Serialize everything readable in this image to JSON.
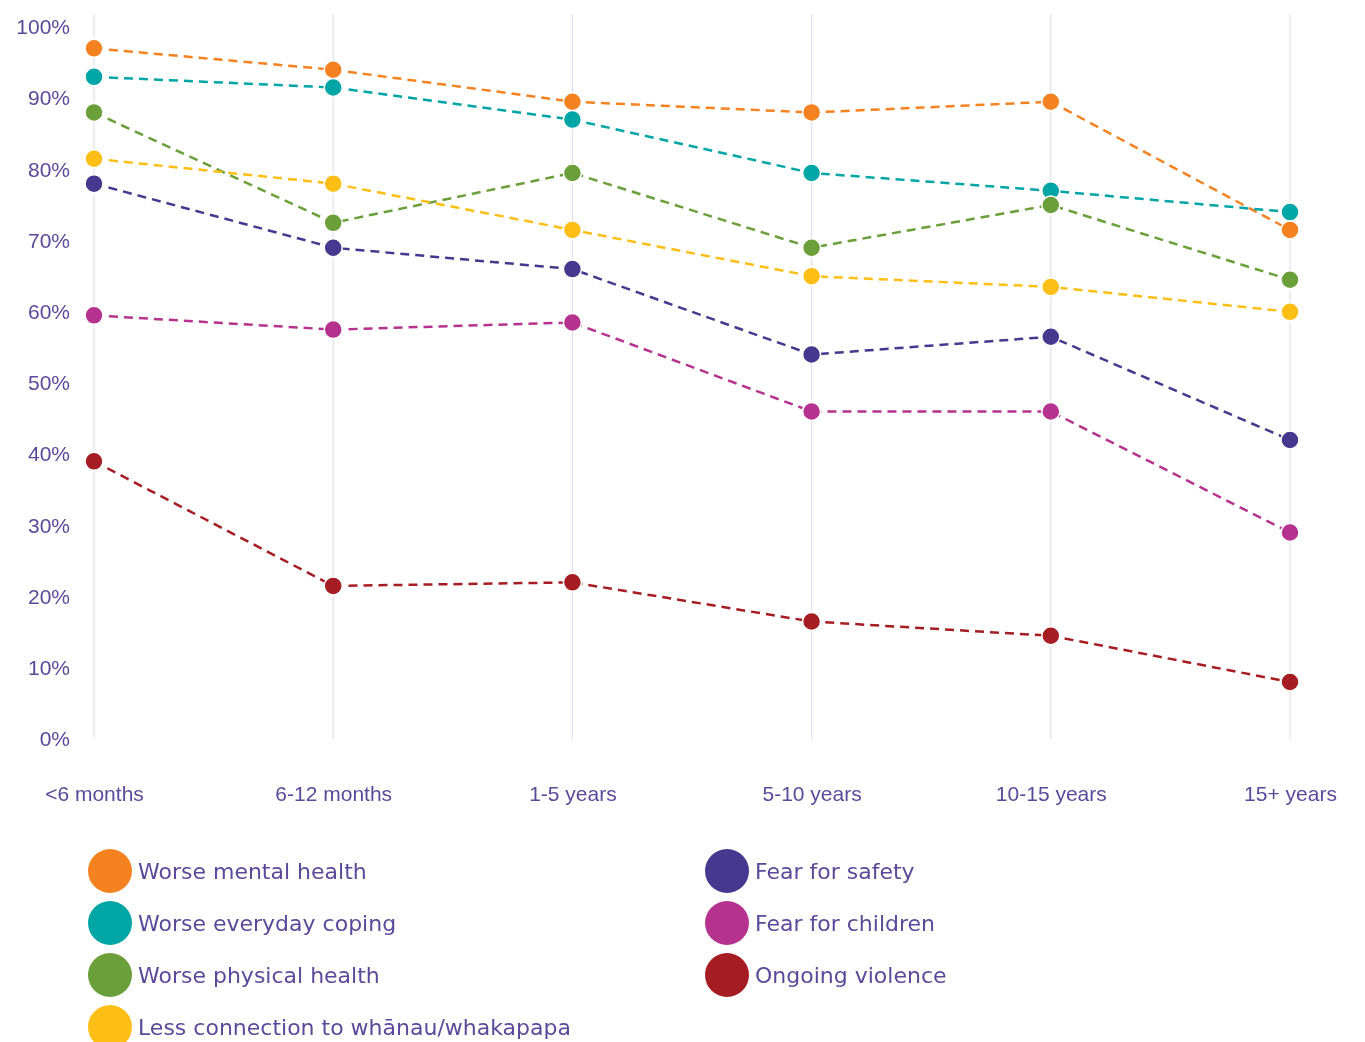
{
  "chart_data": {
    "type": "line",
    "categories": [
      "<6 months",
      "6-12 months",
      "1-5 years",
      "5-10 years",
      "10-15 years",
      "15+ years"
    ],
    "series": [
      {
        "name": "Worse mental health",
        "color": "#f58220",
        "values": [
          97,
          94,
          89.5,
          88,
          89.5,
          71.5
        ]
      },
      {
        "name": "Worse everyday coping",
        "color": "#00a6a6",
        "values": [
          93,
          91.5,
          87,
          79.5,
          77,
          74
        ]
      },
      {
        "name": "Worse physical health",
        "color": "#6a9f3a",
        "values": [
          88,
          72.5,
          79.5,
          69,
          75,
          64.5
        ]
      },
      {
        "name": "Less connection to whānau/whakapapa",
        "color": "#fdbf16",
        "values": [
          81.5,
          78,
          71.5,
          65,
          63.5,
          60
        ]
      },
      {
        "name": "Fear for safety",
        "color": "#46388f",
        "values": [
          78,
          69,
          66,
          54,
          56.5,
          42
        ]
      },
      {
        "name": "Fear for children",
        "color": "#b5338e",
        "values": [
          59.5,
          57.5,
          58.5,
          46,
          46,
          29
        ]
      },
      {
        "name": "Ongoing violence",
        "color": "#a51d22",
        "values": [
          39,
          21.5,
          22,
          16.5,
          14.5,
          8
        ]
      }
    ],
    "ylim": [
      0,
      100
    ],
    "yticks": [
      {
        "value": 0,
        "label": "0%"
      },
      {
        "value": 10,
        "label": "10%"
      },
      {
        "value": 20,
        "label": "20%"
      },
      {
        "value": 30,
        "label": "30%"
      },
      {
        "value": 40,
        "label": "40%"
      },
      {
        "value": 50,
        "label": "50%"
      },
      {
        "value": 60,
        "label": "60%"
      },
      {
        "value": 70,
        "label": "70%"
      },
      {
        "value": 80,
        "label": "80%"
      },
      {
        "value": 90,
        "label": "90%"
      },
      {
        "value": 100,
        "label": "100%"
      }
    ],
    "grid": "x",
    "legend": "bottom",
    "marker": "circle",
    "line_style": "dashed"
  }
}
